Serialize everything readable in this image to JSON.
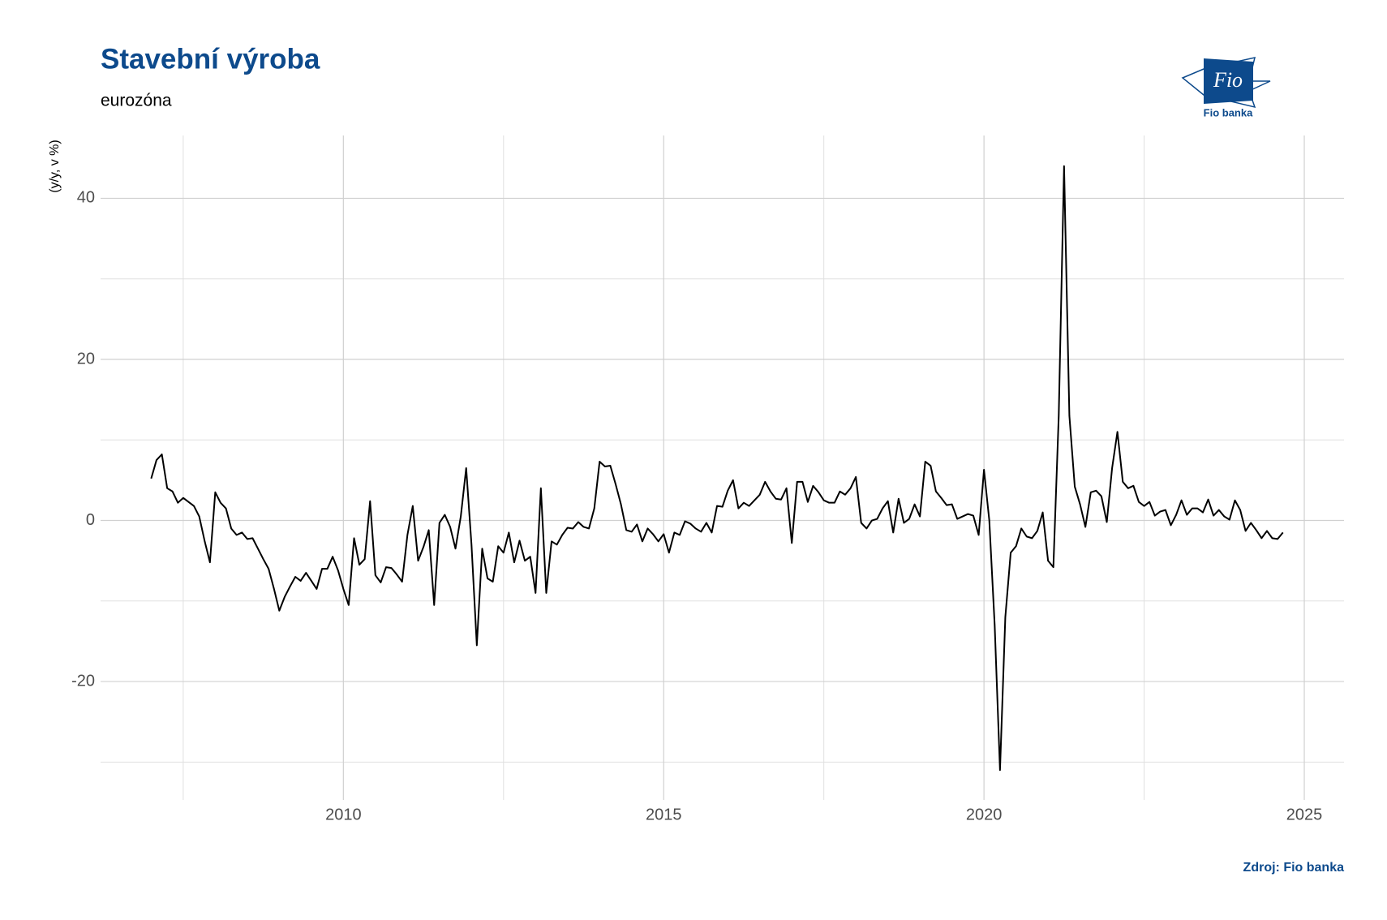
{
  "chart_data": {
    "type": "line",
    "title": "Stavební výroba",
    "subtitle": "eurozóna",
    "y_label": "(y/y, v %)",
    "caption": "Zdroj: Fio banka",
    "logo": {
      "text": "Fio",
      "caption": "Fio banka"
    },
    "xlim": [
      2006.21,
      2025.62
    ],
    "ylim": [
      -34.7,
      47.8
    ],
    "xticks": [
      2010,
      2015,
      2020,
      2025
    ],
    "yticks": [
      -20,
      0,
      20,
      40
    ],
    "xminorticks": [
      2007.5,
      2012.5,
      2017.5,
      2022.5
    ],
    "yminorticks": [
      -30,
      -10,
      10,
      30
    ],
    "grid": true,
    "x": [
      2007.0,
      2007.083,
      2007.167,
      2007.25,
      2007.333,
      2007.417,
      2007.5,
      2007.583,
      2007.667,
      2007.75,
      2007.833,
      2007.917,
      2008.0,
      2008.083,
      2008.167,
      2008.25,
      2008.333,
      2008.417,
      2008.5,
      2008.583,
      2008.667,
      2008.75,
      2008.833,
      2008.917,
      2009.0,
      2009.083,
      2009.167,
      2009.25,
      2009.333,
      2009.417,
      2009.5,
      2009.583,
      2009.667,
      2009.75,
      2009.833,
      2009.917,
      2010.0,
      2010.083,
      2010.167,
      2010.25,
      2010.333,
      2010.417,
      2010.5,
      2010.583,
      2010.667,
      2010.75,
      2010.833,
      2010.917,
      2011.0,
      2011.083,
      2011.167,
      2011.25,
      2011.333,
      2011.417,
      2011.5,
      2011.583,
      2011.667,
      2011.75,
      2011.833,
      2011.917,
      2012.0,
      2012.083,
      2012.167,
      2012.25,
      2012.333,
      2012.417,
      2012.5,
      2012.583,
      2012.667,
      2012.75,
      2012.833,
      2012.917,
      2013.0,
      2013.083,
      2013.167,
      2013.25,
      2013.333,
      2013.417,
      2013.5,
      2013.583,
      2013.667,
      2013.75,
      2013.833,
      2013.917,
      2014.0,
      2014.083,
      2014.167,
      2014.25,
      2014.333,
      2014.417,
      2014.5,
      2014.583,
      2014.667,
      2014.75,
      2014.833,
      2014.917,
      2015.0,
      2015.083,
      2015.167,
      2015.25,
      2015.333,
      2015.417,
      2015.5,
      2015.583,
      2015.667,
      2015.75,
      2015.833,
      2015.917,
      2016.0,
      2016.083,
      2016.167,
      2016.25,
      2016.333,
      2016.417,
      2016.5,
      2016.583,
      2016.667,
      2016.75,
      2016.833,
      2016.917,
      2017.0,
      2017.083,
      2017.167,
      2017.25,
      2017.333,
      2017.417,
      2017.5,
      2017.583,
      2017.667,
      2017.75,
      2017.833,
      2017.917,
      2018.0,
      2018.083,
      2018.167,
      2018.25,
      2018.333,
      2018.417,
      2018.5,
      2018.583,
      2018.667,
      2018.75,
      2018.833,
      2018.917,
      2019.0,
      2019.083,
      2019.167,
      2019.25,
      2019.333,
      2019.417,
      2019.5,
      2019.583,
      2019.667,
      2019.75,
      2019.833,
      2019.917,
      2020.0,
      2020.083,
      2020.167,
      2020.25,
      2020.333,
      2020.417,
      2020.5,
      2020.583,
      2020.667,
      2020.75,
      2020.833,
      2020.917,
      2021.0,
      2021.083,
      2021.167,
      2021.25,
      2021.333,
      2021.417,
      2021.5,
      2021.583,
      2021.667,
      2021.75,
      2021.833,
      2021.917,
      2022.0,
      2022.083,
      2022.167,
      2022.25,
      2022.333,
      2022.417,
      2022.5,
      2022.583,
      2022.667,
      2022.75,
      2022.833,
      2022.917,
      2023.0,
      2023.083,
      2023.167,
      2023.25,
      2023.333,
      2023.417,
      2023.5,
      2023.583,
      2023.667,
      2023.75,
      2023.833,
      2023.917,
      2024.0,
      2024.083,
      2024.167,
      2024.25,
      2024.333,
      2024.417,
      2024.5,
      2024.583,
      2024.667
    ],
    "values": [
      5.2,
      7.5,
      8.2,
      4,
      3.6,
      2.2,
      2.8,
      2.3,
      1.8,
      0.5,
      -2.5,
      -5.2,
      3.5,
      2.2,
      1.5,
      -1,
      -1.8,
      -1.5,
      -2.3,
      -2.2,
      -3.5,
      -4.8,
      -6,
      -8.5,
      -11.2,
      -9.5,
      -8.2,
      -7,
      -7.5,
      -6.5,
      -7.5,
      -8.5,
      -6,
      -6,
      -4.5,
      -6.2,
      -8.5,
      -10.5,
      -2.2,
      -5.5,
      -4.8,
      2.4,
      -6.8,
      -7.7,
      -5.8,
      -5.9,
      -6.7,
      -7.6,
      -1.8,
      1.8,
      -5,
      -3.3,
      -1.2,
      -10.5,
      -0.3,
      0.7,
      -0.8,
      -3.5,
      0.5,
      6.5,
      -3,
      -15.5,
      -3.5,
      -7.2,
      -7.6,
      -3.2,
      -4,
      -1.5,
      -5.2,
      -2.5,
      -5,
      -4.5,
      -9,
      4,
      -9,
      -2.6,
      -3,
      -1.8,
      -0.9,
      -1,
      -0.2,
      -0.8,
      -1,
      1.5,
      7.3,
      6.7,
      6.8,
      4.5,
      2,
      -1.2,
      -1.4,
      -0.5,
      -2.6,
      -1,
      -1.7,
      -2.6,
      -1.7,
      -4,
      -1.5,
      -1.8,
      -0.1,
      -0.4,
      -1,
      -1.4,
      -0.3,
      -1.5,
      1.8,
      1.7,
      3.7,
      5,
      1.5,
      2.2,
      1.8,
      2.5,
      3.2,
      4.8,
      3.6,
      2.7,
      2.6,
      4,
      -2.8,
      4.8,
      4.8,
      2.3,
      4.3,
      3.5,
      2.5,
      2.2,
      2.2,
      3.6,
      3.2,
      4,
      5.4,
      -0.3,
      -1,
      0,
      0.2,
      1.5,
      2.4,
      -1.5,
      2.7,
      -0.3,
      0.2,
      2,
      0.5,
      7.3,
      6.8,
      3.6,
      2.8,
      1.9,
      2,
      0.2,
      0.5,
      0.8,
      0.6,
      -1.8,
      6.3,
      0,
      -13,
      -31,
      -12,
      -4,
      -3.2,
      -1,
      -2,
      -2.2,
      -1.3,
      1,
      -5,
      -5.8,
      13,
      44,
      13,
      4.2,
      2,
      -0.8,
      3.5,
      3.7,
      3,
      -0.2,
      6.5,
      11,
      4.8,
      4,
      4.3,
      2.3,
      1.8,
      2.3,
      0.6,
      1.1,
      1.3,
      -0.6,
      0.7,
      2.5,
      0.7,
      1.5,
      1.5,
      1,
      2.6,
      0.6,
      1.3,
      0.5,
      0.1,
      2.5,
      1.3,
      -1.3,
      -0.3,
      -1.2,
      -2.2,
      -1.3,
      -2.2,
      -2.3,
      -1.5
    ],
    "color": "#000000",
    "title_color": "#0d4a8c"
  }
}
